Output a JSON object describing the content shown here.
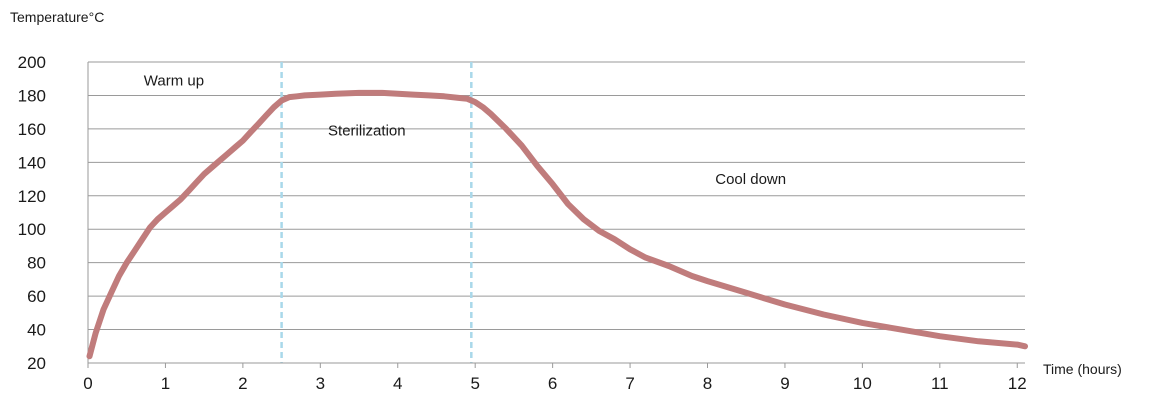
{
  "chart_data": {
    "type": "line",
    "title": "",
    "ylabel": "Temperature°C",
    "xlabel": "Time (hours)",
    "xlim": [
      0,
      12.1
    ],
    "ylim": [
      20,
      200
    ],
    "x_ticks": [
      "0",
      "1",
      "2",
      "3",
      "4",
      "5",
      "6",
      "7",
      "8",
      "9",
      "10",
      "11",
      "12"
    ],
    "y_ticks": [
      "20",
      "40",
      "60",
      "80",
      "100",
      "120",
      "140",
      "160",
      "180",
      "200"
    ],
    "grid": true,
    "series": [
      {
        "color": "#c07c7c",
        "x": [
          0.02,
          0.1,
          0.2,
          0.3,
          0.4,
          0.5,
          0.6,
          0.7,
          0.8,
          0.9,
          1.0,
          1.1,
          1.2,
          1.3,
          1.4,
          1.5,
          1.6,
          1.7,
          1.8,
          1.9,
          2.0,
          2.1,
          2.2,
          2.3,
          2.4,
          2.5,
          2.6,
          2.7,
          2.8,
          3.0,
          3.2,
          3.5,
          3.8,
          4.0,
          4.2,
          4.4,
          4.6,
          4.8,
          4.9,
          5.0,
          5.1,
          5.2,
          5.4,
          5.6,
          5.8,
          6.0,
          6.2,
          6.4,
          6.6,
          6.8,
          7.0,
          7.2,
          7.5,
          7.8,
          8.0,
          8.5,
          9.0,
          9.5,
          10.0,
          10.5,
          11.0,
          11.5,
          12.0,
          12.1
        ],
        "y": [
          24,
          38,
          52,
          62,
          72,
          80,
          87,
          94,
          101,
          106,
          110,
          114,
          118,
          123,
          128,
          133,
          137,
          141,
          145,
          149,
          153,
          158,
          163,
          168,
          173,
          177,
          179,
          179.5,
          180,
          180.5,
          181,
          181.5,
          181.5,
          181,
          180.5,
          180,
          179.5,
          178.5,
          178,
          176,
          173,
          169,
          160,
          150,
          138,
          127,
          115,
          106,
          99,
          94,
          88,
          83,
          78,
          72,
          69,
          62,
          55,
          49,
          44,
          40,
          36,
          33,
          31,
          30
        ]
      }
    ],
    "phase_dividers": [
      2.5,
      4.95
    ],
    "annotations": [
      {
        "text": "Warm up",
        "x": 0.72,
        "y": 189
      },
      {
        "text": "Sterilization",
        "x": 3.1,
        "y": 159
      },
      {
        "text": "Cool down",
        "x": 8.1,
        "y": 130
      }
    ]
  }
}
